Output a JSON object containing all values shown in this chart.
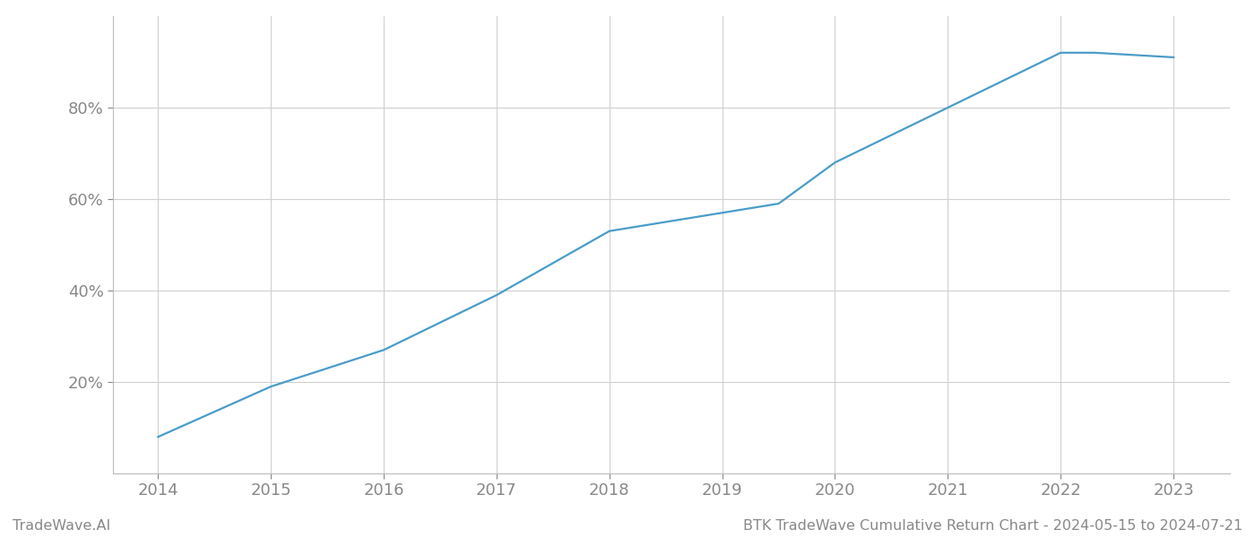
{
  "x_years": [
    2014,
    2015,
    2016,
    2017,
    2018,
    2019,
    2019.5,
    2020,
    2020.5,
    2021,
    2022,
    2022.3,
    2023
  ],
  "y_values": [
    8,
    19,
    27,
    39,
    53,
    57,
    59,
    68,
    74,
    80,
    92,
    92,
    91
  ],
  "line_color": "#4a9cc9",
  "line_width": 1.6,
  "background_color": "#ffffff",
  "grid_color": "#d0d0d0",
  "tick_color": "#888888",
  "xlabel": "",
  "ylabel": "",
  "footer_left": "TradeWave.AI",
  "footer_right": "BTK TradeWave Cumulative Return Chart - 2024-05-15 to 2024-07-21",
  "yticks": [
    20,
    40,
    60,
    80
  ],
  "ylim": [
    0,
    100
  ],
  "xlim": [
    2013.6,
    2023.5
  ],
  "xticks": [
    2014,
    2015,
    2016,
    2017,
    2018,
    2019,
    2020,
    2021,
    2022,
    2023
  ],
  "tick_fontsize": 13,
  "footer_fontsize": 11.5
}
